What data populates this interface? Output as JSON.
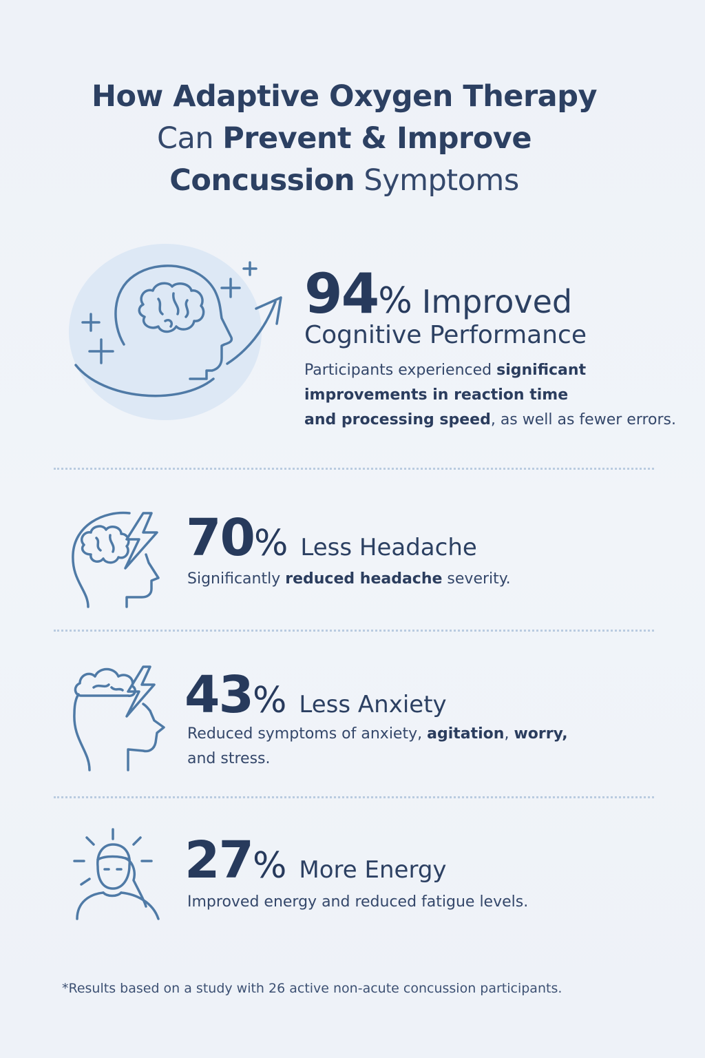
{
  "title": {
    "line1": "How Adaptive Oxygen Therapy",
    "line2_pre": "Can ",
    "line2_bold": "Prevent & Improve",
    "line3_bold": "Concussion",
    "line3_post": " Symptoms"
  },
  "stats": [
    {
      "value": "94",
      "unit": "%",
      "label_line1": "Improved",
      "label_line2": "Cognitive Performance",
      "desc_pre": "Participants experienced ",
      "desc_bold1": "significant",
      "desc_bold2": "improvements in reaction time",
      "desc_bold3": "and processing speed",
      "desc_post": ", as well as fewer errors.",
      "icon": "brain-head-arrow-icon"
    },
    {
      "value": "70",
      "unit": "%",
      "label": "Less Headache",
      "desc_pre": "Significantly ",
      "desc_bold": "reduced headache",
      "desc_post": " severity.",
      "icon": "headache-icon"
    },
    {
      "value": "43",
      "unit": "%",
      "label": "Less Anxiety",
      "desc_line1_pre": "Reduced symptoms of anxiety, ",
      "desc_line1_mid": "agitation",
      "desc_line1_sep": ", ",
      "desc_line1_end": "worry,",
      "desc_line2": "and stress.",
      "icon": "anxiety-icon"
    },
    {
      "value": "27",
      "unit": "%",
      "label": "More Energy",
      "desc": "Improved energy and reduced fatigue levels.",
      "icon": "energy-icon"
    }
  ],
  "footnote": "*Results based on a study with 26 active non-acute concussion participants.",
  "colors": {
    "text_dark": "#273a5c",
    "icon_stroke": "#4f7aa6",
    "divider": "#b9cbe0",
    "circle_bg": "#dde8f5"
  }
}
